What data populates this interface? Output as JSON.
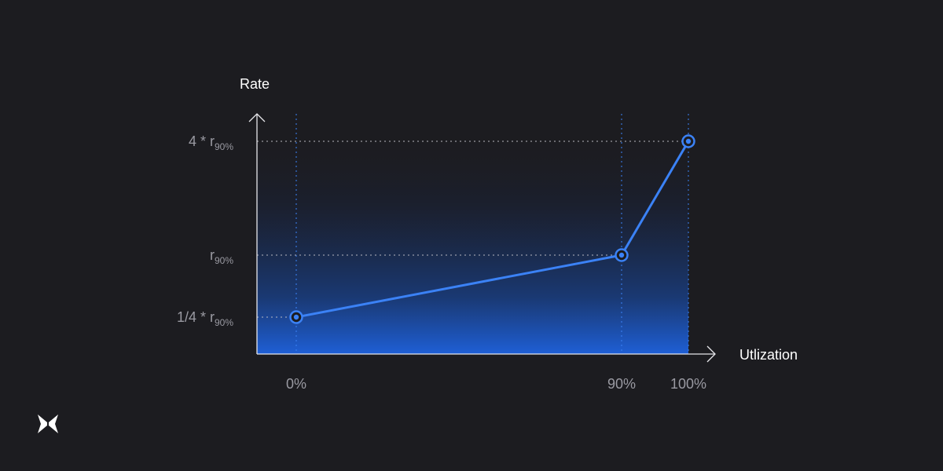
{
  "colors": {
    "background": "#1c1c20",
    "line": "#3b82f6",
    "guide": "#3b82f6",
    "axis": "#e6e6ea",
    "text": "#ffffff",
    "tick_text": "#9a9aa2"
  },
  "chart_data": {
    "type": "line",
    "title": "",
    "xlabel": "Utlization",
    "ylabel": "Rate",
    "x_ticks": [
      {
        "value": 0,
        "label": "0%"
      },
      {
        "value": 90,
        "label": "90%"
      },
      {
        "value": 100,
        "label": "100%"
      }
    ],
    "y_ticks": [
      {
        "value": 0.25,
        "label": "1/4 * r",
        "sub": "90%"
      },
      {
        "value": 1,
        "label": "r",
        "sub": "90%"
      },
      {
        "value": 4,
        "label": "4 * r",
        "sub": "90%"
      }
    ],
    "series": [
      {
        "points": [
          {
            "x": 0,
            "y": 0.25
          },
          {
            "x": 90,
            "y": 1
          },
          {
            "x": 100,
            "y": 4
          }
        ]
      }
    ],
    "area_fill": "gradient",
    "grid": false
  },
  "logo": {
    "icon": "butterfly-logo-icon"
  }
}
